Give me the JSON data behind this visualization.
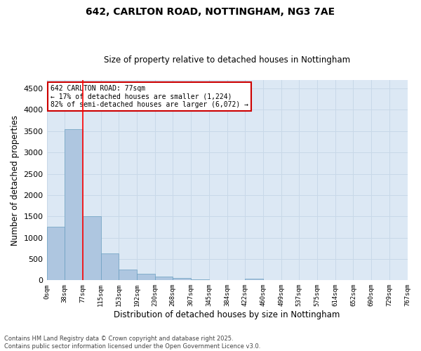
{
  "title_line1": "642, CARLTON ROAD, NOTTINGHAM, NG3 7AE",
  "title_line2": "Size of property relative to detached houses in Nottingham",
  "xlabel": "Distribution of detached houses by size in Nottingham",
  "ylabel": "Number of detached properties",
  "bar_edges": [
    0,
    38,
    77,
    115,
    153,
    192,
    230,
    268,
    307,
    345,
    384,
    422,
    460,
    499,
    537,
    575,
    614,
    652,
    690,
    729,
    767
  ],
  "bar_heights": [
    1250,
    3550,
    1500,
    630,
    250,
    150,
    90,
    50,
    20,
    10,
    5,
    40,
    0,
    5,
    0,
    0,
    0,
    0,
    0,
    0
  ],
  "bar_color": "#aec6e0",
  "bar_edge_color": "#6a9fc0",
  "grid_color": "#c8d8e8",
  "background_color": "#dce8f4",
  "red_line_x": 77,
  "annotation_text": "642 CARLTON ROAD: 77sqm\n← 17% of detached houses are smaller (1,224)\n82% of semi-detached houses are larger (6,072) →",
  "annotation_box_color": "#ffffff",
  "annotation_box_edge": "#cc0000",
  "ylim": [
    0,
    4700
  ],
  "yticks": [
    0,
    500,
    1000,
    1500,
    2000,
    2500,
    3000,
    3500,
    4000,
    4500
  ],
  "footnote": "Contains HM Land Registry data © Crown copyright and database right 2025.\nContains public sector information licensed under the Open Government Licence v3.0.",
  "tick_labels": [
    "0sqm",
    "38sqm",
    "77sqm",
    "115sqm",
    "153sqm",
    "192sqm",
    "230sqm",
    "268sqm",
    "307sqm",
    "345sqm",
    "384sqm",
    "422sqm",
    "460sqm",
    "499sqm",
    "537sqm",
    "575sqm",
    "614sqm",
    "652sqm",
    "690sqm",
    "729sqm",
    "767sqm"
  ]
}
